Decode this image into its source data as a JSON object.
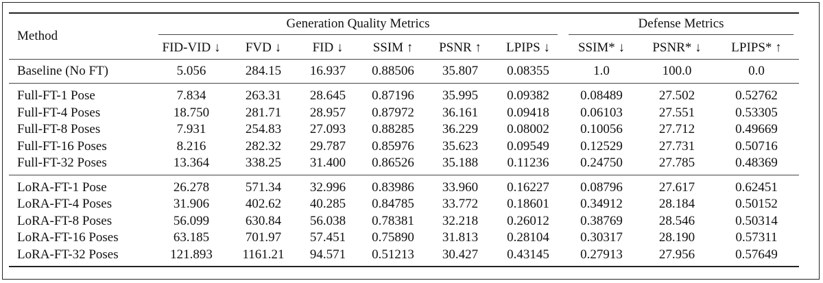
{
  "table": {
    "method_header": "Method",
    "group_headers": [
      "Generation Quality Metrics",
      "Defense Metrics"
    ],
    "columns": [
      "FID-VID ↓",
      "FVD ↓",
      "FID ↓",
      "SSIM ↑",
      "PSNR ↑",
      "LPIPS ↓",
      "SSIM* ↓",
      "PSNR* ↓",
      "LPIPS* ↑"
    ],
    "baseline": {
      "method": "Baseline (No FT)",
      "values": [
        "5.056",
        "284.15",
        "16.937",
        "0.88506",
        "35.807",
        "0.08355",
        "1.0",
        "100.0",
        "0.0"
      ]
    },
    "full_ft": [
      {
        "method": "Full-FT-1 Pose",
        "values": [
          "7.834",
          "263.31",
          "28.645",
          "0.87196",
          "35.995",
          "0.09382",
          "0.08489",
          "27.502",
          "0.52762"
        ]
      },
      {
        "method": "Full-FT-4 Poses",
        "values": [
          "18.750",
          "281.71",
          "28.957",
          "0.87972",
          "36.161",
          "0.09418",
          "0.06103",
          "27.551",
          "0.53305"
        ]
      },
      {
        "method": "Full-FT-8 Poses",
        "values": [
          "7.931",
          "254.83",
          "27.093",
          "0.88285",
          "36.229",
          "0.08002",
          "0.10056",
          "27.712",
          "0.49669"
        ]
      },
      {
        "method": "Full-FT-16 Poses",
        "values": [
          "8.216",
          "282.32",
          "29.787",
          "0.85976",
          "35.623",
          "0.09549",
          "0.12529",
          "27.731",
          "0.50716"
        ]
      },
      {
        "method": "Full-FT-32 Poses",
        "values": [
          "13.364",
          "338.25",
          "31.400",
          "0.86526",
          "35.188",
          "0.11236",
          "0.24750",
          "27.785",
          "0.48369"
        ]
      }
    ],
    "lora_ft": [
      {
        "method": "LoRA-FT-1 Pose",
        "values": [
          "26.278",
          "571.34",
          "32.996",
          "0.83986",
          "33.960",
          "0.16227",
          "0.08796",
          "27.617",
          "0.62451"
        ]
      },
      {
        "method": "LoRA-FT-4 Poses",
        "values": [
          "31.906",
          "402.62",
          "40.285",
          "0.84785",
          "33.772",
          "0.18601",
          "0.34912",
          "28.184",
          "0.50152"
        ]
      },
      {
        "method": "LoRA-FT-8 Poses",
        "values": [
          "56.099",
          "630.84",
          "56.038",
          "0.78381",
          "32.218",
          "0.26012",
          "0.38769",
          "28.546",
          "0.50314"
        ]
      },
      {
        "method": "LoRA-FT-16 Poses",
        "values": [
          "63.185",
          "701.97",
          "57.451",
          "0.75890",
          "31.813",
          "0.28104",
          "0.30317",
          "28.190",
          "0.57311"
        ]
      },
      {
        "method": "LoRA-FT-32 Poses",
        "values": [
          "121.893",
          "1161.21",
          "94.571",
          "0.51213",
          "30.427",
          "0.43145",
          "0.27913",
          "27.956",
          "0.57649"
        ]
      }
    ]
  }
}
